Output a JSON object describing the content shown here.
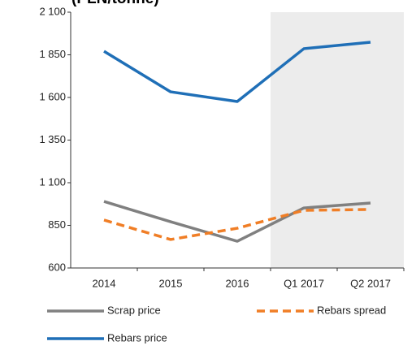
{
  "chart_data": {
    "type": "line",
    "title": "(PLN/tonne)",
    "categories": [
      "2014",
      "2015",
      "2016",
      "Q1 2017",
      "Q2 2017"
    ],
    "series": [
      {
        "name": "Scrap price",
        "color": "#808080",
        "style": "solid",
        "values": [
          990,
          871,
          757,
          952,
          981
        ]
      },
      {
        "name": "Rebars spread",
        "color": "#f07e26",
        "style": "dashed",
        "values": [
          881,
          767,
          833,
          938,
          943
        ]
      },
      {
        "name": "Rebars price",
        "color": "#1f6fb7",
        "style": "solid",
        "values": [
          1871,
          1633,
          1576,
          1886,
          1924
        ]
      }
    ],
    "ylim": [
      600,
      2100
    ],
    "yticks": [
      600,
      850,
      {
        "value": 1100,
        "label": "1 100"
      },
      {
        "value": 1350,
        "label": "1 350"
      },
      {
        "value": 1600,
        "label": "1 600"
      },
      {
        "value": 1850,
        "label": "1 850"
      },
      {
        "value": 2100,
        "label": "2 100"
      }
    ],
    "grid": false,
    "legend": "bottom"
  }
}
